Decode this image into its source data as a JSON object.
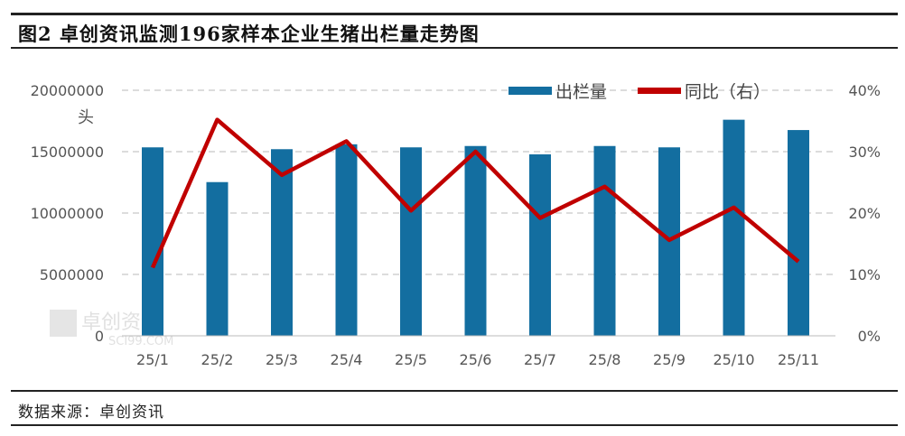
{
  "title": "图2 卓创资讯监测196家样本企业生猪出栏量走势图",
  "source": "数据来源：卓创资讯",
  "watermark": {
    "cn": "卓创资讯",
    "en": "SCI99.COM"
  },
  "colors": {
    "bar": "#136ea0",
    "line": "#c00000",
    "grid": "#d0d0d0"
  },
  "chart_data": {
    "type": "bar+line",
    "categories": [
      "25/1",
      "25/2",
      "25/3",
      "25/4",
      "25/5",
      "25/6",
      "25/7",
      "25/8",
      "25/9",
      "25/10",
      "25/11"
    ],
    "series": [
      {
        "name": "出栏量",
        "type": "bar",
        "axis": "left",
        "values": [
          15350000,
          12520000,
          15200000,
          15600000,
          15350000,
          15460000,
          14780000,
          15460000,
          15350000,
          17600000,
          16760000
        ]
      },
      {
        "name": "同比（右）",
        "type": "line",
        "axis": "right",
        "values": [
          11.1,
          35.2,
          26.2,
          31.7,
          20.4,
          30.0,
          19.2,
          24.3,
          15.6,
          20.9,
          12.1
        ]
      }
    ],
    "y_left": {
      "label": "头",
      "ylim": [
        0,
        20000000
      ],
      "ticks": [
        "0",
        "5000000",
        "10000000",
        "15000000",
        "20000000"
      ]
    },
    "y_right": {
      "ylim": [
        0,
        40
      ],
      "ticks": [
        "0%",
        "10%",
        "20%",
        "30%",
        "40%"
      ]
    },
    "legend": "top-right",
    "grid": true
  }
}
